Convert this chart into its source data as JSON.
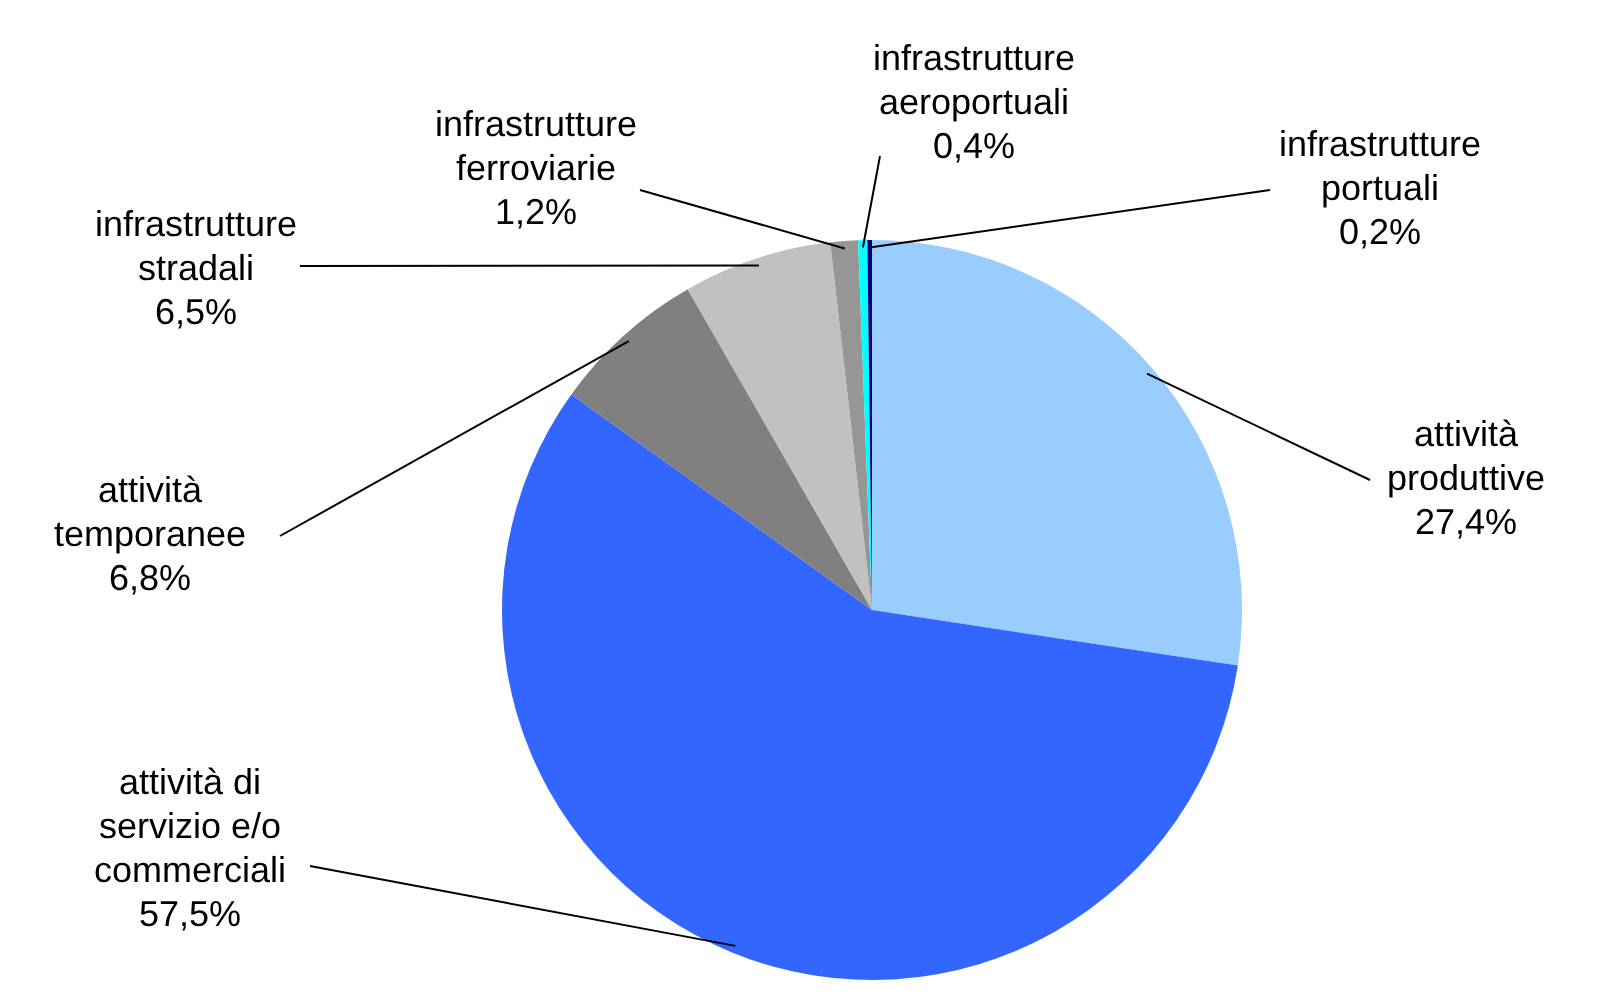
{
  "chart_data": {
    "type": "pie",
    "categories": [
      "attività produttive",
      "attività di servizio e/o commerciali",
      "attività temporanee",
      "infrastrutture stradali",
      "infrastrutture ferroviarie",
      "infrastrutture aeroportuali",
      "infrastrutture portuali"
    ],
    "values": [
      27.4,
      57.5,
      6.8,
      6.5,
      1.2,
      0.4,
      0.2
    ],
    "value_labels": [
      "27,4%",
      "57,5%",
      "6,8%",
      "6,5%",
      "1,2%",
      "0,4%",
      "0,2%"
    ],
    "colors": [
      "#99ccff",
      "#3366ff",
      "#808080",
      "#c0c0c0",
      "#969696",
      "#00ffff",
      "#000080"
    ]
  }
}
